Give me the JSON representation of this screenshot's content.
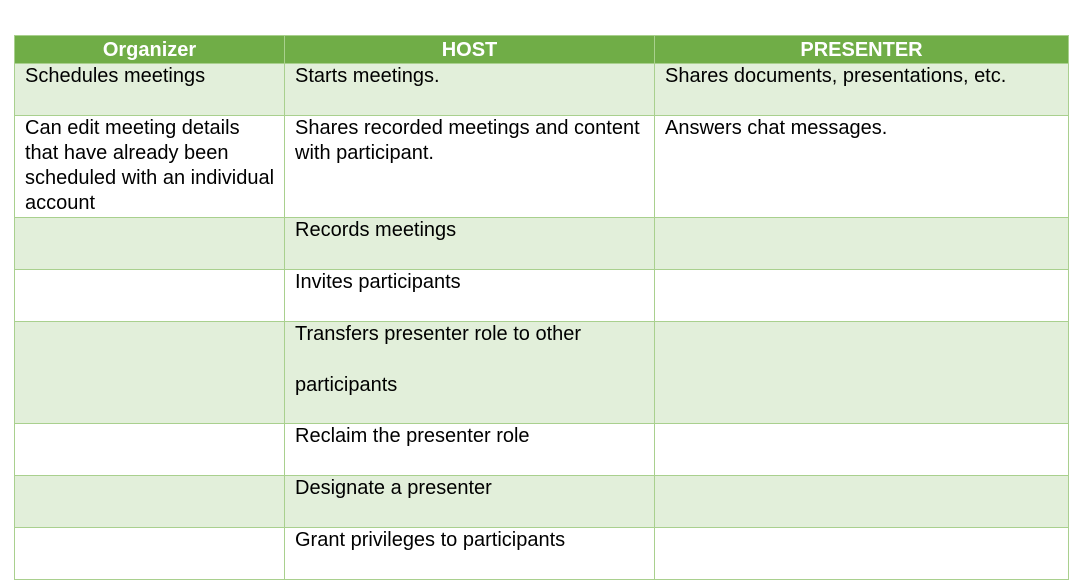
{
  "table": {
    "headers": [
      "Organizer",
      "HOST",
      "PRESENTER"
    ],
    "rows": [
      [
        "Schedules meetings",
        "Starts meetings.",
        "Shares documents, presentations, etc."
      ],
      [
        "Can edit meeting details that have already been scheduled with an individual account",
        "Shares recorded meetings and content with participant.",
        "Answers chat messages."
      ],
      [
        "",
        "Records meetings",
        ""
      ],
      [
        "",
        "Invites participants",
        ""
      ],
      [
        "",
        "Transfers presenter role to other participants",
        ""
      ],
      [
        "",
        "Reclaim the presenter role",
        ""
      ],
      [
        "",
        "Designate a presenter",
        ""
      ],
      [
        "",
        "Grant privileges to participants",
        ""
      ]
    ],
    "transfers_part1": "Transfers presenter role to other",
    "transfers_part2": "participants",
    "colors": {
      "header_bg": "#70ad47",
      "header_text": "#ffffff",
      "shaded_row_bg": "#e2efda",
      "border": "#a9d08e"
    }
  }
}
